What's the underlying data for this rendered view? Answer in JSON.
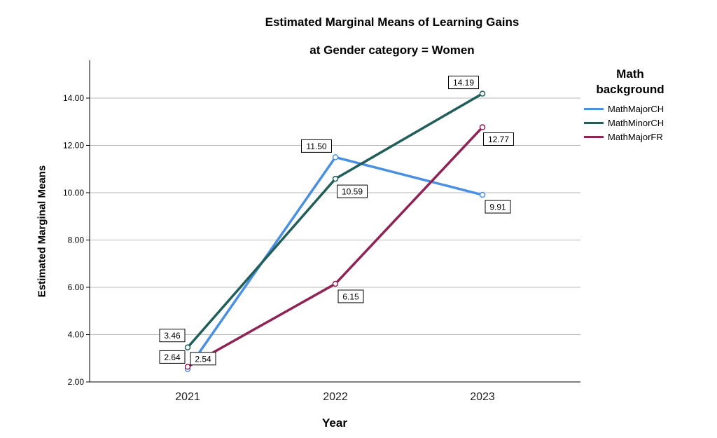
{
  "chart_data": {
    "type": "line",
    "title": "Estimated Marginal Means of Learning Gains",
    "subtitle": "at Gender category = Women",
    "xlabel": "Year",
    "ylabel": "Estimated Marginal Means",
    "categories": [
      "2021",
      "2022",
      "2023"
    ],
    "ylim": [
      2.0,
      15.6
    ],
    "yticks": [
      "2.00",
      "4.00",
      "6.00",
      "8.00",
      "10.00",
      "12.00",
      "14.00"
    ],
    "grid": true,
    "legend_title": "Math background",
    "legend_position": "right",
    "series": [
      {
        "name": "MathMajorCH",
        "color": "#4a90e2",
        "values": [
          2.54,
          11.5,
          9.91
        ],
        "labels": [
          "2.54",
          "11.50",
          "9.91"
        ]
      },
      {
        "name": "MathMinorCH",
        "color": "#215e5a",
        "values": [
          3.46,
          10.59,
          14.19
        ],
        "labels": [
          "3.46",
          "10.59",
          "14.19"
        ]
      },
      {
        "name": "MathMajorFR",
        "color": "#8e2355",
        "values": [
          2.64,
          6.15,
          12.77
        ],
        "labels": [
          "2.64",
          "6.15",
          "12.77"
        ]
      }
    ]
  }
}
